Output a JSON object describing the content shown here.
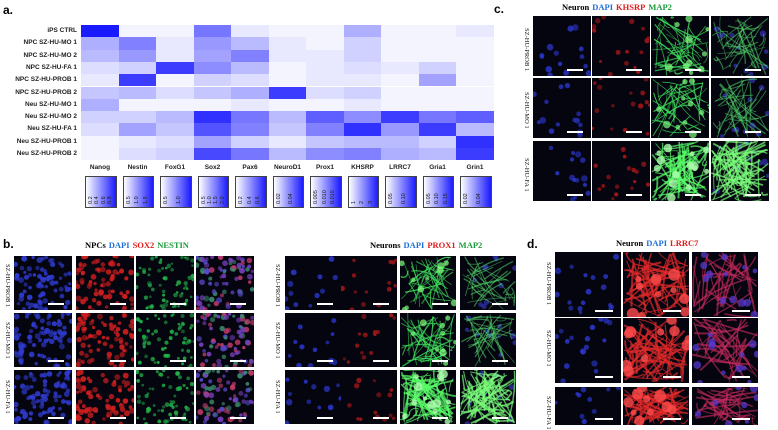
{
  "panels": {
    "a": "a.",
    "b": "b.",
    "c": "c.",
    "d": "d."
  },
  "heatmap": {
    "rows": [
      "iPS CTRL",
      "NPC SZ-HU-MO 1",
      "NPC SZ-HU-MO 2",
      "NPC SZ-HU-FA 1",
      "NPC SZ-HU-PROB 1",
      "NPC SZ-HU-PROB 2",
      "Neu SZ-HU-MO 1",
      "Neu SZ-HU-MO 2",
      "Neu SZ-HU-FA 1",
      "Neu SZ-HU-PROB 1",
      "Neu SZ-HU-PROB 2"
    ],
    "columns": [
      "Nanog",
      "Nestin",
      "FoxG1",
      "Sox2",
      "Pax6",
      "NeuroD1",
      "Prox1",
      "KHSRP",
      "LRRC7",
      "Gria1",
      "Grin1"
    ],
    "values": [
      [
        1.0,
        0.05,
        0.05,
        0.6,
        0.1,
        0.05,
        0.05,
        0.35,
        0.05,
        0.05,
        0.1
      ],
      [
        0.35,
        0.55,
        0.1,
        0.45,
        0.3,
        0.1,
        0.05,
        0.2,
        0.05,
        0.05,
        0.05
      ],
      [
        0.3,
        0.45,
        0.1,
        0.4,
        0.55,
        0.1,
        0.1,
        0.2,
        0.05,
        0.05,
        0.05
      ],
      [
        0.15,
        0.2,
        0.85,
        0.5,
        0.3,
        0.05,
        0.1,
        0.15,
        0.1,
        0.2,
        0.05
      ],
      [
        0.1,
        0.85,
        0.05,
        0.2,
        0.15,
        0.05,
        0.1,
        0.1,
        0.05,
        0.4,
        0.05
      ],
      [
        0.25,
        0.3,
        0.15,
        0.25,
        0.35,
        0.85,
        0.15,
        0.2,
        0.05,
        0.05,
        0.05
      ],
      [
        0.35,
        0.05,
        0.05,
        0.05,
        0.1,
        0.05,
        0.05,
        0.1,
        0.05,
        0.05,
        0.05
      ],
      [
        0.2,
        0.2,
        0.3,
        0.9,
        0.6,
        0.3,
        0.7,
        0.5,
        0.85,
        0.6,
        0.7
      ],
      [
        0.15,
        0.4,
        0.25,
        0.75,
        0.55,
        0.25,
        0.55,
        0.9,
        0.45,
        0.85,
        0.3
      ],
      [
        0.05,
        0.1,
        0.15,
        0.4,
        0.2,
        0.1,
        0.25,
        0.3,
        0.3,
        0.2,
        0.9
      ],
      [
        0.05,
        0.15,
        0.2,
        0.8,
        0.6,
        0.3,
        0.5,
        0.55,
        0.35,
        0.3,
        0.85
      ]
    ],
    "colorbars": [
      {
        "ticks": [
          "0.2",
          "0.4",
          "0.6",
          "0.8"
        ]
      },
      {
        "ticks": [
          "0.5",
          "1.0",
          "1.5"
        ]
      },
      {
        "ticks": [
          "0.5",
          "1.0"
        ]
      },
      {
        "ticks": [
          "0.5",
          "1.0",
          "1.5",
          "2.0"
        ]
      },
      {
        "ticks": [
          "0.2",
          "0.4",
          "0.6"
        ]
      },
      {
        "ticks": [
          "0.02",
          "0.04"
        ]
      },
      {
        "ticks": [
          "0.005",
          "0.010",
          "0.015"
        ]
      },
      {
        "ticks": [
          "1",
          "2",
          "3"
        ]
      },
      {
        "ticks": [
          "0.05",
          "0.10"
        ]
      },
      {
        "ticks": [
          "0.05",
          "0.10",
          "0.15"
        ]
      },
      {
        "ticks": [
          "0.02",
          "0.04"
        ]
      }
    ],
    "colors": {
      "low": "#ffffff",
      "high": "#1a1aff"
    }
  },
  "panel_b_left": {
    "title_parts": [
      {
        "text": "NPCs",
        "color": "#000000"
      },
      {
        "text": "DAPI",
        "color": "#1f6fd6"
      },
      {
        "text": "SOX2",
        "color": "#e01b1b"
      },
      {
        "text": "NESTIN",
        "color": "#1a9a3a"
      }
    ],
    "rows": [
      "SZ-HU-PROB 1",
      "SZ-HU-MO 1",
      "SZ-HU-FA 1"
    ]
  },
  "panel_b_right": {
    "title_parts": [
      {
        "text": "Neurons",
        "color": "#000000"
      },
      {
        "text": "DAPI",
        "color": "#1f6fd6"
      },
      {
        "text": "PROX1",
        "color": "#e01b1b"
      },
      {
        "text": "MAP2",
        "color": "#1a9a3a"
      }
    ],
    "rows": [
      "SZ-HU-PROB 1",
      "SZ-HU-MO 1",
      "SZ-HU-FA 1"
    ]
  },
  "panel_c": {
    "title_parts": [
      {
        "text": "Neuron",
        "color": "#000000"
      },
      {
        "text": "DAPI",
        "color": "#1f6fd6"
      },
      {
        "text": "KHSRP",
        "color": "#e01b1b"
      },
      {
        "text": "MAP2",
        "color": "#1a9a3a"
      }
    ],
    "rows": [
      "SZ-HU-PROB 1",
      "SZ-HU-MO 1",
      "SZ-HU-FA 1"
    ]
  },
  "panel_d": {
    "title_parts": [
      {
        "text": "Neuron",
        "color": "#000000"
      },
      {
        "text": "DAPI",
        "color": "#1f6fd6"
      },
      {
        "text": "LRRC7",
        "color": "#e01b1b"
      }
    ],
    "rows": [
      "SZ-HU-PROB 1",
      "SZ-HU-MO 1",
      "SZ-HU-FA 1"
    ]
  }
}
